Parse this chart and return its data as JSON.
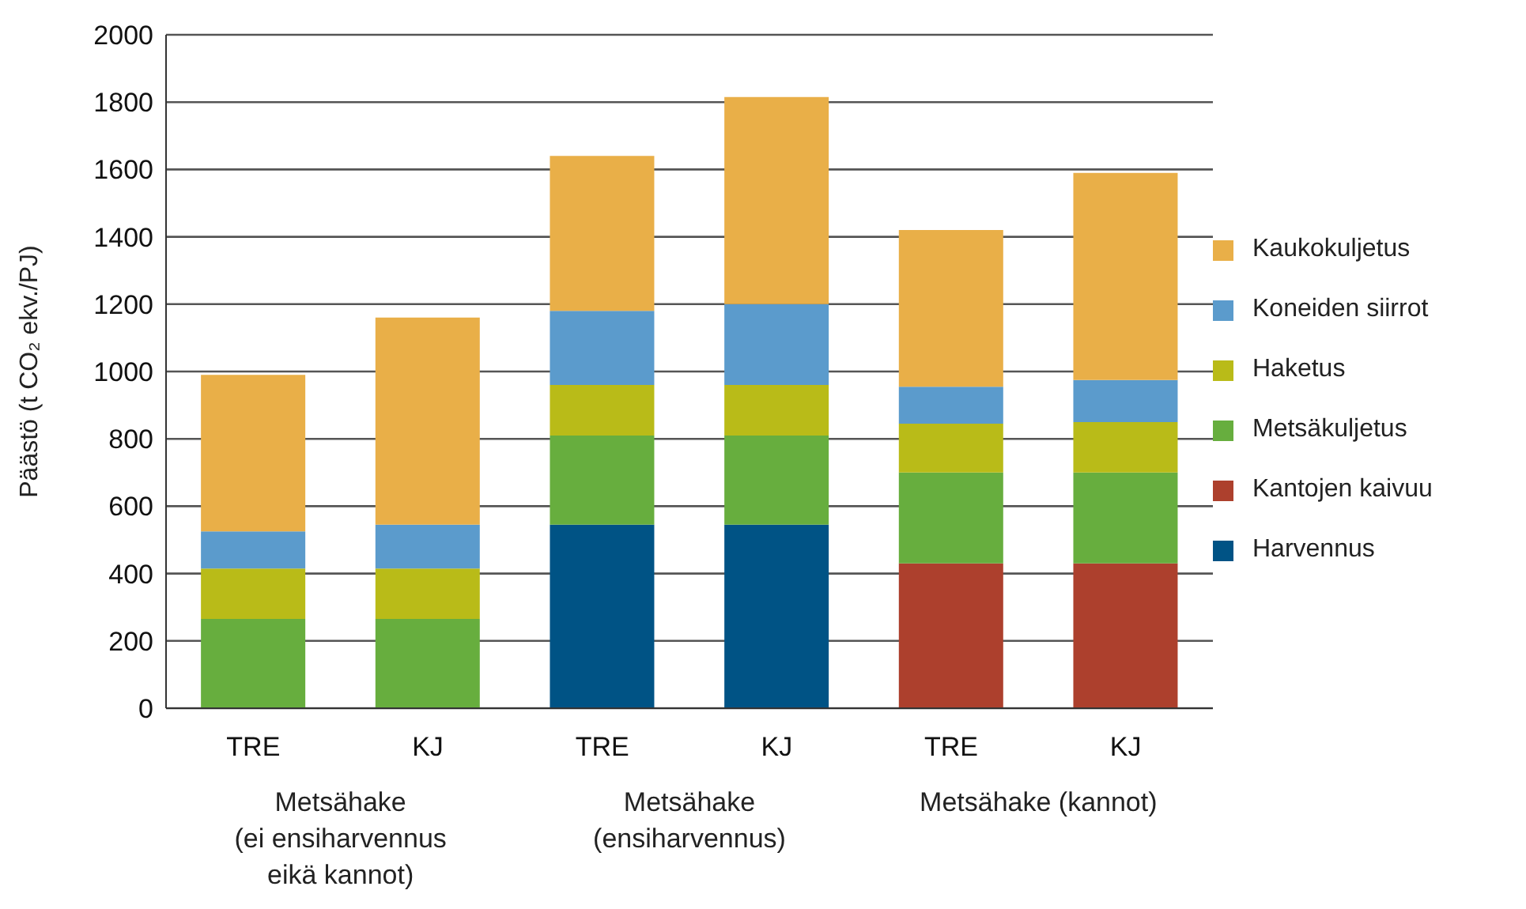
{
  "chart_data": {
    "type": "bar",
    "stacked": true,
    "ylabel": "Päästö (t CO₂ ekv./PJ)",
    "categories": [
      "TRE",
      "KJ",
      "TRE",
      "KJ",
      "TRE",
      "KJ"
    ],
    "annotations": [
      "Metsähake\n(ei ensiharvennus\neikä kannot)",
      "Metsähake\n(ensiharvennus)",
      "Metsähake (kannot)"
    ],
    "series": [
      {
        "name": "Harvennus",
        "color": "#005385",
        "values": [
          0,
          0,
          545,
          545,
          0,
          0
        ]
      },
      {
        "name": "Kantojen kaivuu",
        "color": "#ad402d",
        "values": [
          0,
          0,
          0,
          0,
          430,
          430
        ]
      },
      {
        "name": "Metsäkuljetus",
        "color": "#67ae3e",
        "values": [
          265,
          265,
          265,
          265,
          270,
          270
        ]
      },
      {
        "name": "Haketus",
        "color": "#b9bb18",
        "values": [
          150,
          150,
          150,
          150,
          145,
          150
        ]
      },
      {
        "name": "Koneiden siirrot",
        "color": "#5b9bcc",
        "values": [
          110,
          130,
          220,
          240,
          110,
          125
        ]
      },
      {
        "name": "Kaukokuljetus",
        "color": "#e9af48",
        "values": [
          465,
          615,
          460,
          615,
          465,
          615
        ]
      }
    ],
    "ylim": [
      0,
      2000
    ],
    "yticks": [
      0,
      200,
      400,
      600,
      800,
      1000,
      1200,
      1400,
      1600,
      1800,
      2000
    ],
    "grid": "y",
    "legend": "right"
  }
}
